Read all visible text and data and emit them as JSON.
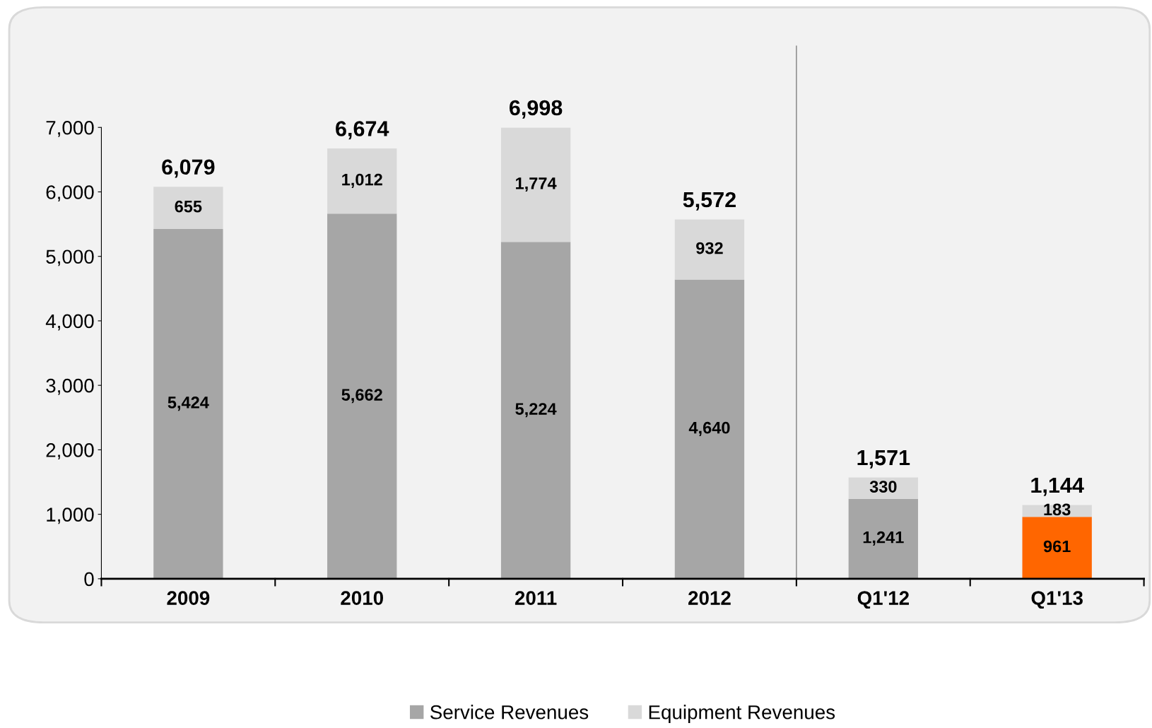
{
  "chart_data": {
    "type": "bar",
    "stacked": true,
    "categories": [
      "2009",
      "2010",
      "2011",
      "2012",
      "Q1'12",
      "Q1'13"
    ],
    "series": [
      {
        "name": "Service Revenues",
        "color": "#a6a6a6",
        "colors": [
          "#a6a6a6",
          "#a6a6a6",
          "#a6a6a6",
          "#a6a6a6",
          "#a6a6a6",
          "#ff6600"
        ],
        "values": [
          5424,
          5662,
          5224,
          4640,
          1241,
          961
        ],
        "value_labels": [
          "5,424",
          "5,662",
          "5,224",
          "4,640",
          "1,241",
          "961"
        ]
      },
      {
        "name": "Equipment Revenues",
        "color": "#d9d9d9",
        "values": [
          655,
          1012,
          1774,
          932,
          330,
          183
        ],
        "value_labels": [
          "655",
          "1,012",
          "1,774",
          "932",
          "330",
          "183"
        ]
      }
    ],
    "totals": [
      "6,079",
      "6,674",
      "6,998",
      "5,572",
      "1,571",
      "1,144"
    ],
    "ylim": [
      0,
      7000
    ],
    "yticks": [
      {
        "value": 0,
        "label": "0"
      },
      {
        "value": 1000,
        "label": "1,000"
      },
      {
        "value": 2000,
        "label": "2,000"
      },
      {
        "value": 3000,
        "label": "3,000"
      },
      {
        "value": 4000,
        "label": "4,000"
      },
      {
        "value": 5000,
        "label": "5,000"
      },
      {
        "value": 6000,
        "label": "6,000"
      },
      {
        "value": 7000,
        "label": "7,000"
      }
    ],
    "grid": false,
    "legend": "bottom"
  }
}
